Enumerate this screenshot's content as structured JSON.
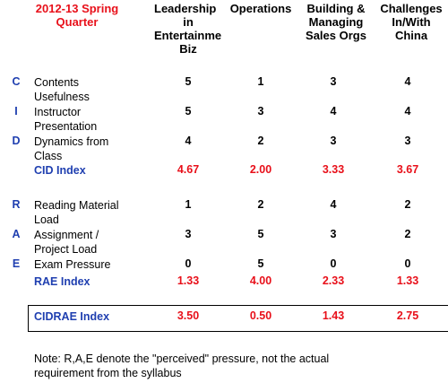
{
  "header": {
    "term": [
      "2012-13 Spring",
      "Quarter"
    ],
    "columns": [
      [
        "Leadership",
        "in",
        "Entertainme",
        "Biz"
      ],
      [
        "Operations"
      ],
      [
        "Building &",
        "Managing",
        "Sales Orgs"
      ],
      [
        "Challenges",
        "In/With",
        "China"
      ]
    ]
  },
  "letters": [
    "C",
    "I",
    "D",
    "R",
    "A",
    "E"
  ],
  "rows": [
    {
      "label": [
        "Contents",
        "Usefulness"
      ],
      "values": [
        "5",
        "1",
        "3",
        "4"
      ]
    },
    {
      "label": [
        "Instructor",
        "Presentation"
      ],
      "values": [
        "5",
        "3",
        "4",
        "4"
      ]
    },
    {
      "label": [
        "Dynamics from",
        "Class"
      ],
      "values": [
        "4",
        "2",
        "3",
        "3"
      ]
    },
    {
      "label": [
        "CID Index"
      ],
      "values": [
        "4.67",
        "2.00",
        "3.33",
        "3.67"
      ]
    },
    {
      "label": [
        "Reading Material",
        "Load"
      ],
      "values": [
        "1",
        "2",
        "4",
        "2"
      ]
    },
    {
      "label": [
        "Assignment /",
        "Project Load"
      ],
      "values": [
        "3",
        "5",
        "3",
        "2"
      ]
    },
    {
      "label": [
        "Exam Pressure"
      ],
      "values": [
        "0",
        "5",
        "0",
        "0"
      ]
    },
    {
      "label": [
        "RAE Index"
      ],
      "values": [
        "1.33",
        "4.00",
        "2.33",
        "1.33"
      ]
    },
    {
      "label": [
        "CIDRAE Index"
      ],
      "values": [
        "3.50",
        "0.50",
        "1.43",
        "2.75"
      ]
    }
  ],
  "note": [
    "Note: R,A,E denote the \"perceived\" pressure, not the actual",
    "requirement from the syllabus"
  ],
  "colors": {
    "red": "#e8101a",
    "blue": "#1f3fb0"
  }
}
